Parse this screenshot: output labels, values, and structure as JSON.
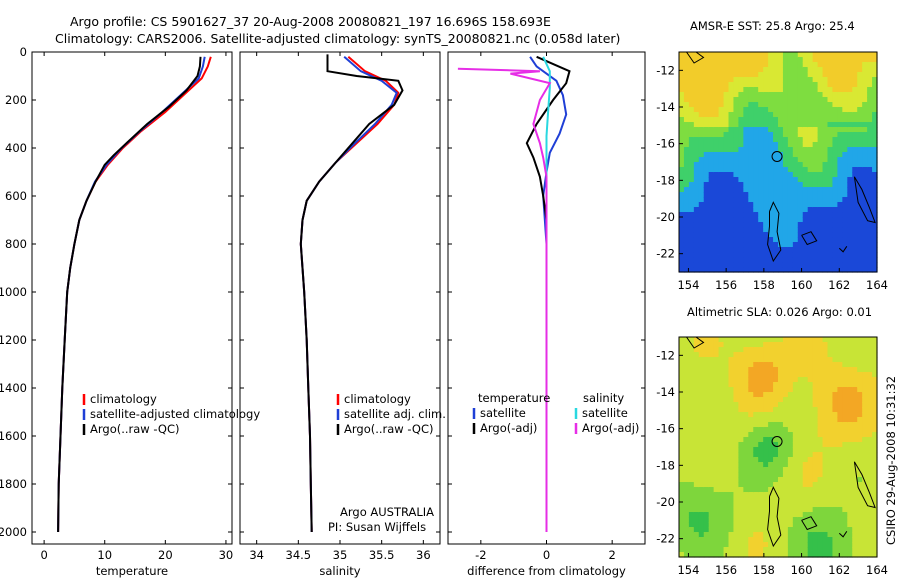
{
  "header": {
    "line1": "Argo profile: CS 5901627_37 20-Aug-2008 20080821_197 16.696S 158.693E",
    "line2": "Climatology: CARS2006. Satellite-adjusted climatology: synTS_20080821.nc (0.058d later)"
  },
  "colors": {
    "climatology": "#ff0000",
    "satellite": "#1f3fd6",
    "argo": "#000000",
    "satellite_salinity": "#29d8e0",
    "argo_adj": "#e62ee6"
  },
  "chart_data": [
    {
      "type": "line",
      "xlabel": "temperature",
      "xlim": [
        -2,
        31
      ],
      "ylim": [
        2050,
        0
      ],
      "xticks": [
        0,
        10,
        20,
        30
      ],
      "yticks": [
        0,
        200,
        400,
        600,
        800,
        1000,
        1200,
        1400,
        1600,
        1800,
        2000
      ],
      "legend": [
        "climatology",
        "satellite-adjusted climatology",
        "Argo(..raw -QC)"
      ],
      "series": [
        {
          "name": "climatology",
          "color": "#ff0000",
          "points": [
            [
              27.5,
              20
            ],
            [
              27.0,
              60
            ],
            [
              26.0,
              110
            ],
            [
              23.0,
              180
            ],
            [
              20.0,
              250
            ],
            [
              16.0,
              330
            ],
            [
              13.0,
              400
            ],
            [
              10.5,
              470
            ],
            [
              8.5,
              540
            ],
            [
              7.0,
              620
            ],
            [
              5.8,
              700
            ],
            [
              5.0,
              800
            ],
            [
              4.3,
              900
            ],
            [
              3.8,
              1000
            ],
            [
              3.4,
              1200
            ],
            [
              3.0,
              1400
            ],
            [
              2.7,
              1600
            ],
            [
              2.4,
              1800
            ],
            [
              2.3,
              2000
            ]
          ]
        },
        {
          "name": "satellite-adjusted climatology",
          "color": "#1f3fd6",
          "points": [
            [
              26.5,
              20
            ],
            [
              26.2,
              60
            ],
            [
              25.5,
              110
            ],
            [
              22.5,
              180
            ],
            [
              19.5,
              250
            ],
            [
              15.8,
              330
            ],
            [
              12.8,
              400
            ],
            [
              10.3,
              470
            ],
            [
              8.4,
              540
            ],
            [
              7.0,
              620
            ],
            [
              5.8,
              700
            ],
            [
              5.0,
              800
            ],
            [
              4.3,
              900
            ],
            [
              3.8,
              1000
            ],
            [
              3.4,
              1200
            ],
            [
              3.0,
              1400
            ],
            [
              2.7,
              1600
            ],
            [
              2.4,
              1800
            ],
            [
              2.3,
              2000
            ]
          ]
        },
        {
          "name": "Argo(..raw -QC)",
          "color": "#000000",
          "points": [
            [
              25.8,
              20
            ],
            [
              25.7,
              60
            ],
            [
              25.3,
              100
            ],
            [
              23.5,
              160
            ],
            [
              20.5,
              230
            ],
            [
              17.0,
              300
            ],
            [
              14.0,
              370
            ],
            [
              11.5,
              430
            ],
            [
              10.0,
              470
            ],
            [
              8.5,
              540
            ],
            [
              7.0,
              620
            ],
            [
              5.8,
              700
            ],
            [
              5.0,
              800
            ],
            [
              4.3,
              900
            ],
            [
              3.8,
              1000
            ],
            [
              3.4,
              1200
            ],
            [
              3.0,
              1400
            ],
            [
              2.7,
              1600
            ],
            [
              2.4,
              1800
            ],
            [
              2.3,
              2000
            ]
          ]
        }
      ]
    },
    {
      "type": "line",
      "xlabel": "salinity",
      "xlim": [
        33.8,
        36.2
      ],
      "ylim": [
        2050,
        0
      ],
      "xticks": [
        34,
        34.5,
        35,
        35.5,
        36
      ],
      "legend": [
        "climatology",
        "satellite adj. clim.",
        "Argo(..raw -QC)"
      ],
      "annotation": [
        "Argo AUSTRALIA",
        "PI: Susan Wijffels"
      ],
      "series": [
        {
          "name": "climatology",
          "color": "#ff0000",
          "points": [
            [
              35.1,
              20
            ],
            [
              35.3,
              80
            ],
            [
              35.55,
              120
            ],
            [
              35.7,
              170
            ],
            [
              35.65,
              220
            ],
            [
              35.45,
              300
            ],
            [
              35.2,
              380
            ],
            [
              34.95,
              460
            ],
            [
              34.75,
              540
            ],
            [
              34.6,
              620
            ],
            [
              34.55,
              700
            ],
            [
              34.53,
              800
            ],
            [
              34.55,
              900
            ],
            [
              34.57,
              1000
            ],
            [
              34.6,
              1200
            ],
            [
              34.62,
              1400
            ],
            [
              34.64,
              1600
            ],
            [
              34.65,
              1800
            ],
            [
              34.66,
              2000
            ]
          ]
        },
        {
          "name": "satellite adj. clim.",
          "color": "#1f3fd6",
          "points": [
            [
              35.05,
              20
            ],
            [
              35.25,
              80
            ],
            [
              35.5,
              120
            ],
            [
              35.68,
              170
            ],
            [
              35.62,
              220
            ],
            [
              35.42,
              300
            ],
            [
              35.18,
              380
            ],
            [
              34.95,
              460
            ],
            [
              34.75,
              540
            ],
            [
              34.6,
              620
            ],
            [
              34.55,
              700
            ],
            [
              34.53,
              800
            ],
            [
              34.55,
              900
            ],
            [
              34.57,
              1000
            ],
            [
              34.6,
              1200
            ],
            [
              34.62,
              1400
            ],
            [
              34.64,
              1600
            ],
            [
              34.65,
              1800
            ],
            [
              34.66,
              2000
            ]
          ]
        },
        {
          "name": "Argo(..raw -QC)",
          "color": "#000000",
          "points": [
            [
              34.85,
              10
            ],
            [
              34.85,
              80
            ],
            [
              35.2,
              100
            ],
            [
              35.7,
              120
            ],
            [
              35.75,
              160
            ],
            [
              35.65,
              220
            ],
            [
              35.35,
              300
            ],
            [
              35.15,
              380
            ],
            [
              34.95,
              460
            ],
            [
              34.75,
              540
            ],
            [
              34.6,
              620
            ],
            [
              34.55,
              700
            ],
            [
              34.53,
              800
            ],
            [
              34.55,
              900
            ],
            [
              34.57,
              1000
            ],
            [
              34.6,
              1200
            ],
            [
              34.62,
              1400
            ],
            [
              34.64,
              1600
            ],
            [
              34.65,
              1800
            ],
            [
              34.66,
              2000
            ]
          ]
        }
      ]
    },
    {
      "type": "line",
      "xlabel": "difference from climatology",
      "xlim": [
        -3,
        3
      ],
      "ylim": [
        2050,
        0
      ],
      "xticks": [
        -2,
        0,
        2
      ],
      "legend": [
        "temperature",
        "satellite",
        "Argo(-adj)",
        "salinity",
        "satellite",
        "Argo(-adj)"
      ],
      "series": [
        {
          "name": "satellite",
          "color": "#1f3fd6",
          "points": [
            [
              -0.5,
              20
            ],
            [
              -0.3,
              60
            ],
            [
              0.3,
              120
            ],
            [
              0.5,
              180
            ],
            [
              0.6,
              260
            ],
            [
              0.4,
              340
            ],
            [
              0.1,
              420
            ],
            [
              0.0,
              500
            ],
            [
              -0.1,
              600
            ],
            [
              0.0,
              800
            ],
            [
              0.0,
              1200
            ],
            [
              0.0,
              1600
            ],
            [
              0.0,
              2000
            ]
          ]
        },
        {
          "name": "Argo(-adj)",
          "color": "#000000",
          "points": [
            [
              -0.3,
              20
            ],
            [
              0.7,
              80
            ],
            [
              0.6,
              130
            ],
            [
              0.2,
              200
            ],
            [
              -0.3,
              300
            ],
            [
              -0.6,
              380
            ],
            [
              -0.4,
              440
            ],
            [
              -0.2,
              520
            ],
            [
              -0.1,
              600
            ],
            [
              0.0,
              700
            ],
            [
              0.0,
              900
            ],
            [
              0.0,
              1200
            ],
            [
              0.0,
              1600
            ],
            [
              0.0,
              2000
            ]
          ]
        },
        {
          "name": "satellite",
          "color": "#29d8e0",
          "points": [
            [
              -0.1,
              20
            ],
            [
              0.1,
              80
            ],
            [
              0.1,
              150
            ],
            [
              0.05,
              250
            ],
            [
              0.0,
              350
            ],
            [
              0.0,
              450
            ],
            [
              0.0,
              600
            ],
            [
              0.0,
              800
            ],
            [
              0.0,
              1200
            ],
            [
              0.0,
              1600
            ],
            [
              0.0,
              2000
            ]
          ]
        },
        {
          "name": "Argo(-adj)",
          "color": "#e62ee6",
          "points": [
            [
              -2.7,
              70
            ],
            [
              -0.2,
              80
            ],
            [
              -1.1,
              90
            ],
            [
              0.1,
              130
            ],
            [
              -0.2,
              200
            ],
            [
              -0.4,
              300
            ],
            [
              -0.2,
              380
            ],
            [
              -0.1,
              440
            ],
            [
              0.0,
              520
            ],
            [
              0.0,
              600
            ],
            [
              0.0,
              800
            ],
            [
              0.0,
              1200
            ],
            [
              0.0,
              1600
            ],
            [
              0.0,
              2000
            ]
          ]
        }
      ]
    },
    {
      "type": "heatmap",
      "title": "AMSR-E SST: 25.8 Argo: 25.4",
      "xlim": [
        153.5,
        164
      ],
      "ylim": [
        -23,
        -11
      ],
      "xticks": [
        154,
        156,
        158,
        160,
        162,
        164
      ],
      "yticks": [
        -12,
        -14,
        -16,
        -18,
        -20,
        -22
      ],
      "marker": [
        158.7,
        -16.7
      ]
    },
    {
      "type": "heatmap",
      "title": "Altimetric SLA: 0.026 Argo: 0.01",
      "xlim": [
        153.5,
        164
      ],
      "ylim": [
        -23,
        -11
      ],
      "xticks": [
        154,
        156,
        158,
        160,
        162,
        164
      ],
      "yticks": [
        -12,
        -14,
        -16,
        -18,
        -20,
        -22
      ],
      "marker": [
        158.7,
        -16.7
      ]
    }
  ],
  "stamp": "CSIRO 29-Aug-2008 10:31:32"
}
